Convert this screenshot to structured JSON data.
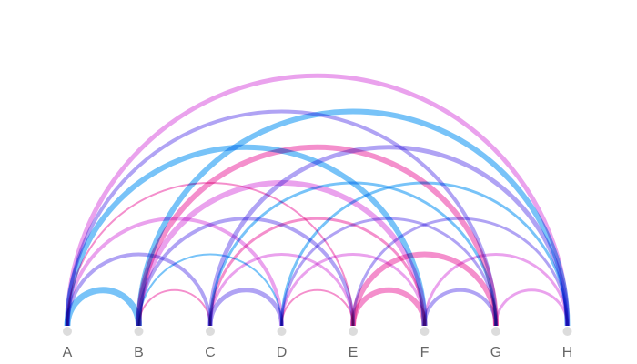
{
  "colors": {
    "blue": "#3fa9f5",
    "violet": "#8f7cf0",
    "magenta": "#e17ae6",
    "pink": "#f05fb7",
    "node": "#dcdcdc",
    "label": "#666666"
  },
  "nodes": [
    "A",
    "B",
    "C",
    "D",
    "E",
    "F",
    "G",
    "H"
  ],
  "links": [
    {
      "source": "A",
      "target": "B",
      "color": "blue",
      "weight": 7
    },
    {
      "source": "A",
      "target": "C",
      "color": "violet",
      "weight": 4
    },
    {
      "source": "A",
      "target": "D",
      "color": "magenta",
      "weight": 4
    },
    {
      "source": "A",
      "target": "E",
      "color": "pink",
      "weight": 2
    },
    {
      "source": "A",
      "target": "F",
      "color": "blue",
      "weight": 6
    },
    {
      "source": "A",
      "target": "G",
      "color": "violet",
      "weight": 4
    },
    {
      "source": "A",
      "target": "H",
      "color": "magenta",
      "weight": 5
    },
    {
      "source": "B",
      "target": "C",
      "color": "pink",
      "weight": 2
    },
    {
      "source": "B",
      "target": "D",
      "color": "blue",
      "weight": 2
    },
    {
      "source": "B",
      "target": "E",
      "color": "violet",
      "weight": 4
    },
    {
      "source": "B",
      "target": "F",
      "color": "magenta",
      "weight": 6
    },
    {
      "source": "B",
      "target": "G",
      "color": "pink",
      "weight": 6
    },
    {
      "source": "B",
      "target": "H",
      "color": "blue",
      "weight": 6
    },
    {
      "source": "C",
      "target": "D",
      "color": "violet",
      "weight": 5
    },
    {
      "source": "C",
      "target": "E",
      "color": "magenta",
      "weight": 3
    },
    {
      "source": "C",
      "target": "F",
      "color": "pink",
      "weight": 3
    },
    {
      "source": "C",
      "target": "G",
      "color": "blue",
      "weight": 3
    },
    {
      "source": "C",
      "target": "H",
      "color": "violet",
      "weight": 5
    },
    {
      "source": "D",
      "target": "E",
      "color": "pink",
      "weight": 2
    },
    {
      "source": "D",
      "target": "F",
      "color": "magenta",
      "weight": 3
    },
    {
      "source": "D",
      "target": "G",
      "color": "violet",
      "weight": 3
    },
    {
      "source": "D",
      "target": "H",
      "color": "blue",
      "weight": 3
    },
    {
      "source": "E",
      "target": "F",
      "color": "pink",
      "weight": 6
    },
    {
      "source": "E",
      "target": "G",
      "color": "pink",
      "weight": 6
    },
    {
      "source": "E",
      "target": "H",
      "color": "violet",
      "weight": 3
    },
    {
      "source": "F",
      "target": "G",
      "color": "violet",
      "weight": 4
    },
    {
      "source": "F",
      "target": "H",
      "color": "magenta",
      "weight": 3
    },
    {
      "source": "G",
      "target": "H",
      "color": "magenta",
      "weight": 3
    }
  ]
}
